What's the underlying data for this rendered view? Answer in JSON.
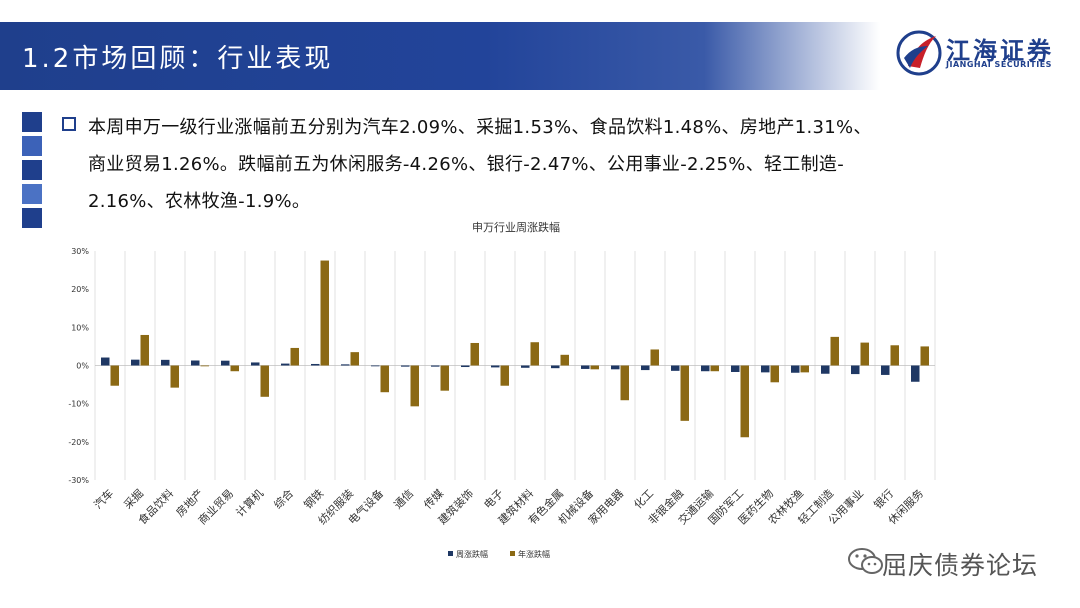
{
  "header": {
    "title": "1.2市场回顾：行业表现",
    "logo_cn": "江海证券",
    "logo_en": "JIANGHAI SECURITIES"
  },
  "summary": {
    "lines": [
      "本周申万一级行业涨幅前五分别为汽车2.09%、采掘1.53%、食品饮料1.48%、房地产1.31%、",
      "商业贸易1.26%。跌幅前五为休闲服务-4.26%、银行-2.47%、公用事业-2.25%、轻工制造-",
      "2.16%、农林牧渔-1.9%。"
    ]
  },
  "colors": {
    "brand": "#1f3f8c",
    "weekly": "#1f3864",
    "yearly": "#8b6914"
  },
  "chart_data": {
    "type": "bar",
    "title": "申万行业周涨跌幅",
    "categories": [
      "汽车",
      "采掘",
      "食品饮料",
      "房地产",
      "商业贸易",
      "计算机",
      "综合",
      "钢铁",
      "纺织服装",
      "电气设备",
      "通信",
      "传媒",
      "建筑装饰",
      "电子",
      "建筑材料",
      "有色金属",
      "机械设备",
      "家用电器",
      "化工",
      "非银金融",
      "交通运输",
      "国防军工",
      "医药生物",
      "农林牧渔",
      "轻工制造",
      "公用事业",
      "银行",
      "休闲服务"
    ],
    "series": [
      {
        "name": "周涨跌幅",
        "values": [
          2.09,
          1.53,
          1.48,
          1.31,
          1.26,
          0.8,
          0.5,
          0.4,
          0.3,
          -0.2,
          -0.3,
          -0.3,
          -0.4,
          -0.5,
          -0.6,
          -0.7,
          -0.9,
          -1.0,
          -1.2,
          -1.4,
          -1.5,
          -1.7,
          -1.8,
          -1.9,
          -2.16,
          -2.25,
          -2.47,
          -4.26
        ]
      },
      {
        "name": "年涨跌幅",
        "values": [
          -5.3,
          8.0,
          -5.8,
          -0.2,
          -1.5,
          -8.2,
          4.6,
          27.5,
          3.5,
          -7.0,
          -10.7,
          -6.6,
          5.9,
          -5.3,
          6.1,
          2.8,
          -1.0,
          -9.1,
          4.2,
          -14.5,
          -1.5,
          -18.8,
          -4.4,
          -1.8,
          7.5,
          6.0,
          5.3,
          5.0
        ]
      }
    ],
    "ylim": [
      -30,
      30
    ],
    "yticks": [
      "30%",
      "20%",
      "10%",
      "0%",
      "-10%",
      "-20%",
      "-30%"
    ],
    "grid": "vertical",
    "legend": "bottom"
  },
  "watermark": {
    "text": "屈庆债券论坛"
  }
}
